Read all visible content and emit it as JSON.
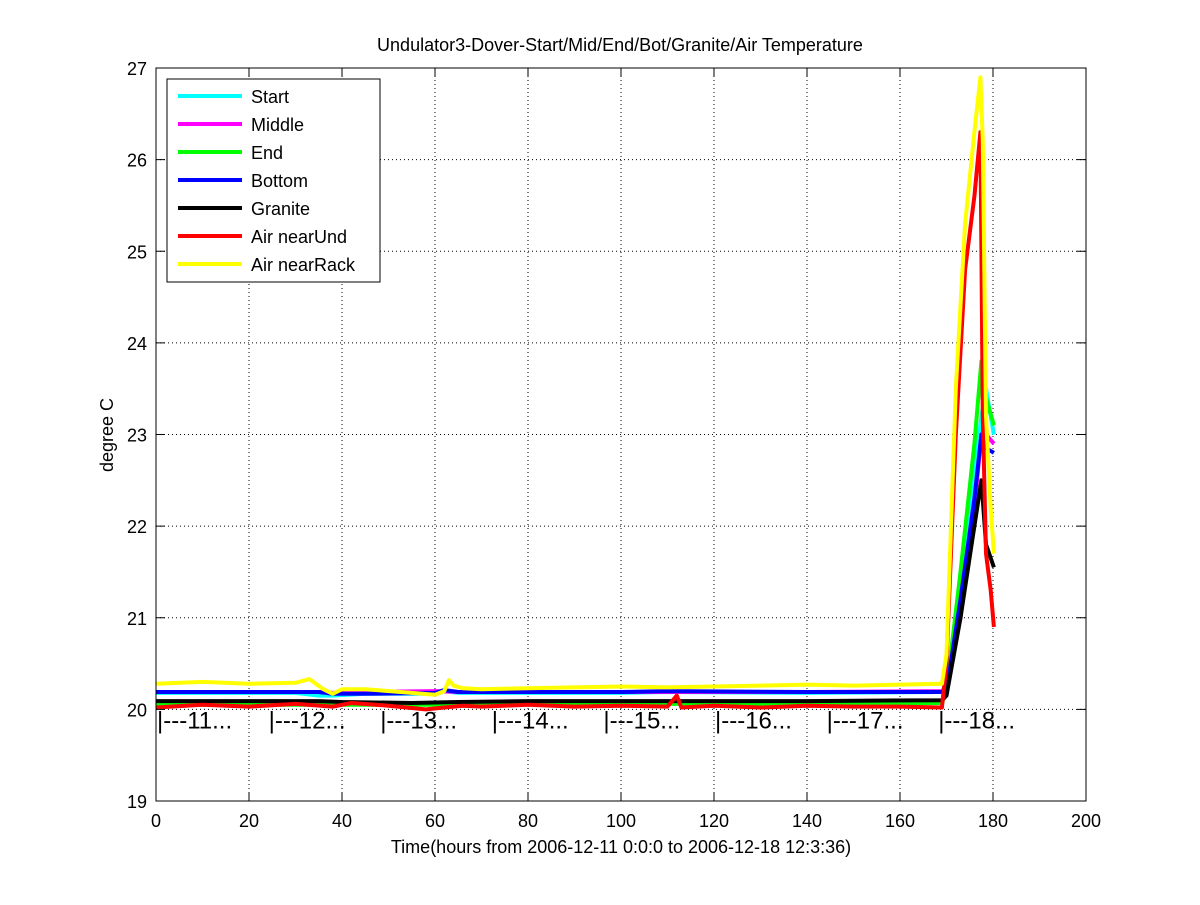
{
  "chart_data": {
    "type": "line",
    "title": "Undulator3-Dover-Start/Mid/End/Bot/Granite/Air Temperature",
    "xlabel": "Time(hours from 2006-12-11 0:0:0 to 2006-12-18 12:3:36)",
    "ylabel": "degree C",
    "xlim": [
      0,
      200
    ],
    "ylim": [
      19,
      27
    ],
    "x_ticks": [
      0,
      20,
      40,
      60,
      80,
      100,
      120,
      140,
      160,
      180,
      200
    ],
    "y_ticks": [
      19,
      20,
      21,
      22,
      23,
      24,
      25,
      26,
      27
    ],
    "grid": true,
    "legend_position": "top-left",
    "day_markers": [
      {
        "x": 0,
        "label": "|---11..."
      },
      {
        "x": 24,
        "label": "|---12..."
      },
      {
        "x": 48,
        "label": "|---13..."
      },
      {
        "x": 72,
        "label": "|---14..."
      },
      {
        "x": 96,
        "label": "|---15..."
      },
      {
        "x": 120,
        "label": "|---16..."
      },
      {
        "x": 144,
        "label": "|---17..."
      },
      {
        "x": 168,
        "label": "|---18..."
      }
    ],
    "day_marker_y": 19.88,
    "series": [
      {
        "name": "Start",
        "color": "#00ffff",
        "x": [
          0,
          30,
          35,
          38,
          45,
          60,
          62,
          65,
          80,
          100,
          110,
          140,
          169,
          170,
          172,
          175,
          177.5,
          178.5,
          179.5,
          180.2
        ],
        "y": [
          20.18,
          20.18,
          20.15,
          20.15,
          20.17,
          20.17,
          20.2,
          20.18,
          20.18,
          20.18,
          20.19,
          20.18,
          20.19,
          20.25,
          21.0,
          22.2,
          23.2,
          23.5,
          23.2,
          23.0
        ]
      },
      {
        "name": "Middle",
        "color": "#ff00ff",
        "x": [
          0,
          35,
          38,
          45,
          60,
          65,
          100,
          140,
          169,
          170,
          173,
          176,
          177.5,
          178.5,
          180.2
        ],
        "y": [
          20.19,
          20.19,
          20.18,
          20.19,
          20.2,
          20.19,
          20.19,
          20.19,
          20.2,
          20.25,
          21.0,
          22.2,
          23.0,
          23.0,
          22.9
        ]
      },
      {
        "name": "End",
        "color": "#00ff00",
        "x": [
          0,
          35,
          60,
          100,
          140,
          169,
          170,
          173,
          176,
          177.5,
          178.5,
          180.2
        ],
        "y": [
          20.05,
          20.05,
          20.05,
          20.06,
          20.06,
          20.07,
          20.2,
          21.5,
          22.9,
          23.8,
          23.4,
          23.1
        ]
      },
      {
        "name": "Bottom",
        "color": "#0000ff",
        "x": [
          0,
          35,
          38,
          45,
          60,
          62,
          65,
          80,
          100,
          110,
          140,
          169,
          170,
          173,
          176,
          177.5,
          178.5,
          180.2
        ],
        "y": [
          20.19,
          20.19,
          20.17,
          20.17,
          20.18,
          20.21,
          20.19,
          20.19,
          20.19,
          20.2,
          20.19,
          20.19,
          20.2,
          21.2,
          22.3,
          23.0,
          22.85,
          22.8
        ]
      },
      {
        "name": "Granite",
        "color": "#000000",
        "x": [
          0,
          35,
          40,
          55,
          65,
          80,
          100,
          140,
          169,
          170,
          173,
          176,
          177.5,
          178.5,
          180.2
        ],
        "y": [
          20.09,
          20.09,
          20.08,
          20.07,
          20.08,
          20.09,
          20.09,
          20.09,
          20.1,
          20.15,
          21.0,
          22.0,
          22.5,
          21.8,
          21.55
        ]
      },
      {
        "name": "Air nearUnd",
        "color": "#ff0000",
        "x": [
          0,
          10,
          20,
          30,
          38,
          42,
          50,
          58,
          62,
          66,
          70,
          80,
          90,
          100,
          110,
          112,
          113,
          120,
          130,
          140,
          150,
          160,
          169,
          170,
          172,
          174,
          176,
          177.3,
          177.8,
          178.5,
          179.5,
          180.2
        ],
        "y": [
          20.02,
          20.05,
          20.03,
          20.06,
          20.03,
          20.07,
          20.04,
          20.0,
          20.02,
          20.04,
          20.03,
          20.05,
          20.03,
          20.04,
          20.03,
          20.15,
          20.02,
          20.04,
          20.02,
          20.04,
          20.03,
          20.03,
          20.02,
          20.5,
          23.0,
          24.8,
          25.6,
          26.3,
          23.2,
          21.7,
          21.3,
          20.9
        ]
      },
      {
        "name": "Air nearRack",
        "color": "#ffff00",
        "x": [
          0,
          10,
          20,
          30,
          33,
          36,
          38,
          40,
          45,
          55,
          60,
          62,
          63,
          64,
          66,
          70,
          80,
          90,
          100,
          110,
          120,
          130,
          140,
          150,
          160,
          169,
          170,
          172,
          174,
          176,
          177.3,
          177.8,
          178.5,
          179.5,
          180.2
        ],
        "y": [
          20.28,
          20.3,
          20.28,
          20.29,
          20.33,
          20.22,
          20.17,
          20.22,
          20.22,
          20.18,
          20.16,
          20.2,
          20.32,
          20.26,
          20.23,
          20.22,
          20.23,
          20.24,
          20.25,
          20.24,
          20.25,
          20.26,
          20.27,
          20.26,
          20.27,
          20.28,
          20.6,
          23.5,
          25.3,
          26.3,
          26.9,
          26.2,
          23.2,
          22.2,
          21.7
        ]
      }
    ]
  }
}
